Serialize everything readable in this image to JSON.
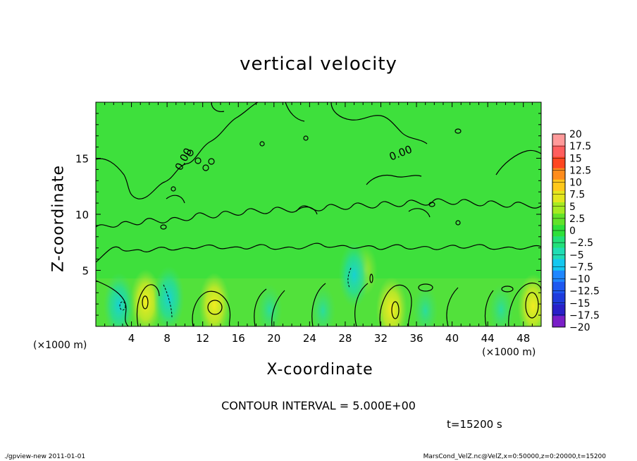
{
  "figure": {
    "title": "vertical velocity",
    "contour_interval_text": "CONTOUR INTERVAL = 5.000E+00",
    "time_text": "t=15200 s",
    "footer_left": "./gpview-new   2011-01-01",
    "footer_right": "MarsCond_VelZ.nc@VelZ,x=0:50000,z=0:20000,t=15200",
    "x_unit": "(×1000 m)",
    "x_unit_right": "(×1000 m)",
    "contour_label": "0.00"
  },
  "chart_data": {
    "type": "heatmap",
    "title": "vertical velocity",
    "xlabel": "X-coordinate",
    "ylabel": "Z-coordinate",
    "x_unit": "(×1000 m)",
    "xlim": [
      0,
      50
    ],
    "ylim": [
      0,
      20
    ],
    "x_ticks": [
      4,
      8,
      12,
      16,
      20,
      24,
      28,
      32,
      36,
      40,
      44,
      48
    ],
    "y_ticks": [
      5,
      10,
      15
    ],
    "x_minor_step": 1,
    "y_minor_step": 1,
    "contour_interval": 5.0,
    "time": 15200,
    "colorbar": {
      "levels": [
        -20,
        -17.5,
        -15,
        -12.5,
        -10,
        -7.5,
        -5,
        -2.5,
        0,
        2.5,
        5,
        7.5,
        10,
        12.5,
        15,
        17.5,
        20
      ],
      "labels": [
        "20",
        "17.5",
        "15",
        "12.5",
        "10",
        "7.5",
        "5",
        "2.5",
        "0",
        "−2.5",
        "−5",
        "−7.5",
        "−10",
        "−12.5",
        "−15",
        "−17.5",
        "−20"
      ],
      "colors": [
        "#7a1fc8",
        "#2a20c8",
        "#1f3cdc",
        "#1e58f0",
        "#1e86ff",
        "#14c8f0",
        "#20ddb4",
        "#22e07a",
        "#2ee03a",
        "#62e22a",
        "#a6ea22",
        "#e4e61e",
        "#ffc81a",
        "#ff8c1c",
        "#ff4620",
        "#ff5e5e",
        "#ff9a9a"
      ],
      "placement": "right"
    },
    "background_value_range": [
      -2.5,
      2.5
    ],
    "features": [
      {
        "kind": "updraft",
        "x": 5.6,
        "z": 2.2,
        "value": 4
      },
      {
        "kind": "updraft",
        "x": 13.3,
        "z": 1.9,
        "value": 4
      },
      {
        "kind": "updraft",
        "x": 33.2,
        "z": 1.5,
        "value": 4
      },
      {
        "kind": "updraft",
        "x": 49.1,
        "z": 1.8,
        "value": 5
      },
      {
        "kind": "updraft",
        "x": 30.2,
        "z": 5.0,
        "value": 3
      },
      {
        "kind": "downdraft",
        "x": 8.2,
        "z": 2.5,
        "value": -6
      },
      {
        "kind": "downdraft",
        "x": 29.0,
        "z": 4.6,
        "value": -5
      },
      {
        "kind": "downdraft",
        "x": 2.6,
        "z": 1.9,
        "value": -4
      },
      {
        "kind": "downdraft",
        "x": 19.5,
        "z": 1.5,
        "value": -3
      },
      {
        "kind": "downdraft",
        "x": 25.5,
        "z": 1.4,
        "value": -3
      },
      {
        "kind": "downdraft",
        "x": 37.0,
        "z": 1.4,
        "value": -3
      },
      {
        "kind": "downdraft",
        "x": 45.5,
        "z": 1.5,
        "value": -3
      }
    ]
  }
}
